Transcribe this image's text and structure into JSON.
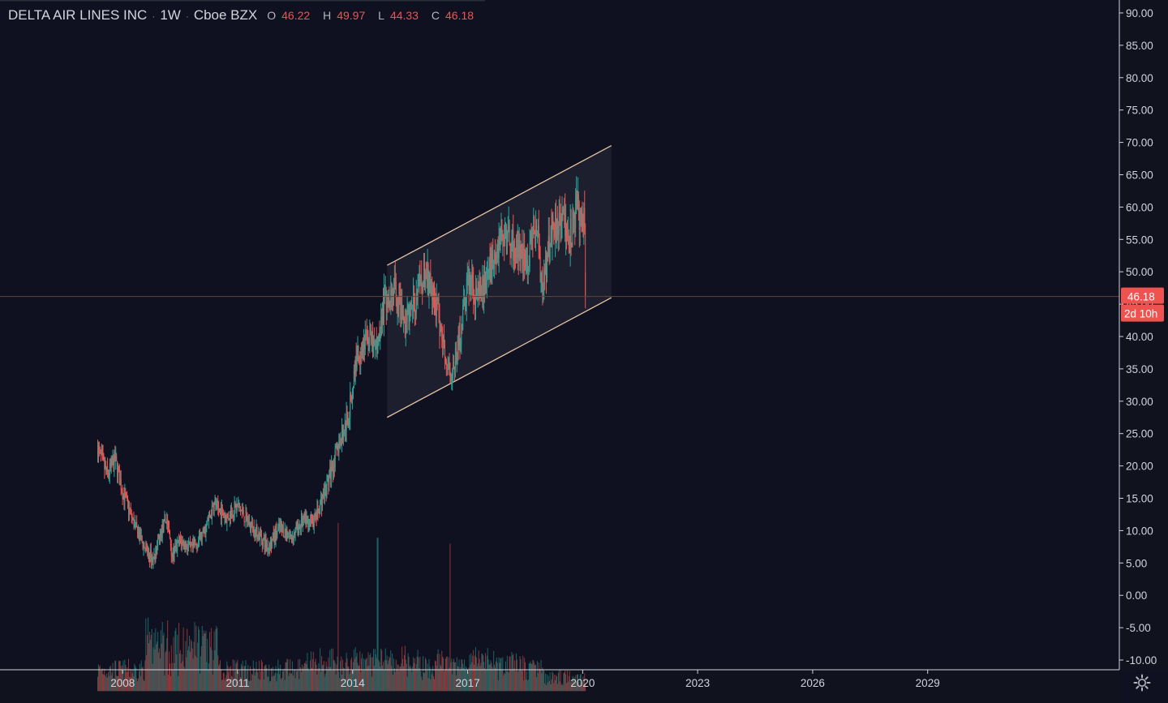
{
  "header": {
    "symbol": "DELTA AIR LINES INC",
    "interval": "1W",
    "exchange": "Cboe BZX",
    "ohlc": [
      {
        "key": "O",
        "value": "46.22"
      },
      {
        "key": "H",
        "value": "49.97"
      },
      {
        "key": "L",
        "value": "44.33"
      },
      {
        "key": "C",
        "value": "46.18"
      }
    ]
  },
  "icons": {
    "settings": "gear-icon"
  },
  "colors": {
    "background": "#0f1120",
    "up": "#26a69a",
    "down": "#ef5350",
    "axis_text": "#d1d4dc",
    "channel_line": "#e6c6a5",
    "price_label": "#ef5350",
    "last_price_line": "#8c2f3a"
  },
  "chart_data": {
    "type": "candlestick",
    "interval": "1W",
    "ylim": [
      -11.5,
      92
    ],
    "xlim": [
      2004.8,
      2034.0
    ],
    "y_ticks": [
      "90.00",
      "85.00",
      "80.00",
      "75.00",
      "70.00",
      "65.00",
      "60.00",
      "55.00",
      "50.00",
      "45.00",
      "40.00",
      "35.00",
      "30.00",
      "25.00",
      "20.00",
      "15.00",
      "10.00",
      "5.00",
      "0.00",
      "-5.00",
      "-10.00"
    ],
    "x_ticks": [
      "2008",
      "2011",
      "2014",
      "2017",
      "2020",
      "2023",
      "2026",
      "2029"
    ],
    "last_price": "46.18",
    "countdown": "2d 10h",
    "channel": {
      "upper": [
        [
          2014.9,
          51.0
        ],
        [
          2020.75,
          69.5
        ]
      ],
      "lower": [
        [
          2014.9,
          27.5
        ],
        [
          2020.75,
          46.0
        ]
      ]
    },
    "price_path": [
      [
        2007.35,
        22.5
      ],
      [
        2007.6,
        18.5
      ],
      [
        2007.8,
        21.0
      ],
      [
        2008.0,
        16.0
      ],
      [
        2008.3,
        11.0
      ],
      [
        2008.6,
        7.0
      ],
      [
        2008.8,
        5.5
      ],
      [
        2009.0,
        9.5
      ],
      [
        2009.15,
        12.0
      ],
      [
        2009.3,
        6.0
      ],
      [
        2009.5,
        8.5
      ],
      [
        2009.8,
        7.0
      ],
      [
        2010.1,
        9.5
      ],
      [
        2010.4,
        14.0
      ],
      [
        2010.7,
        12.0
      ],
      [
        2011.0,
        14.0
      ],
      [
        2011.3,
        11.0
      ],
      [
        2011.6,
        9.0
      ],
      [
        2011.8,
        7.5
      ],
      [
        2012.1,
        10.5
      ],
      [
        2012.4,
        9.0
      ],
      [
        2012.7,
        11.5
      ],
      [
        2013.0,
        11.5
      ],
      [
        2013.3,
        16.5
      ],
      [
        2013.6,
        22.5
      ],
      [
        2013.9,
        28.0
      ],
      [
        2014.1,
        37.0
      ],
      [
        2014.4,
        40.0
      ],
      [
        2014.6,
        38.0
      ],
      [
        2014.85,
        46.0
      ],
      [
        2015.1,
        47.0
      ],
      [
        2015.35,
        42.0
      ],
      [
        2015.6,
        45.0
      ],
      [
        2015.9,
        50.0
      ],
      [
        2016.2,
        44.0
      ],
      [
        2016.4,
        38.0
      ],
      [
        2016.6,
        34.0
      ],
      [
        2016.8,
        40.0
      ],
      [
        2017.0,
        49.0
      ],
      [
        2017.3,
        46.0
      ],
      [
        2017.6,
        51.0
      ],
      [
        2017.9,
        56.0
      ],
      [
        2018.2,
        54.0
      ],
      [
        2018.5,
        51.0
      ],
      [
        2018.8,
        58.0
      ],
      [
        2018.95,
        47.0
      ],
      [
        2019.2,
        57.0
      ],
      [
        2019.45,
        59.0
      ],
      [
        2019.65,
        55.0
      ],
      [
        2019.85,
        60.0
      ],
      [
        2020.05,
        57.0
      ],
      [
        2020.09,
        46.18
      ]
    ],
    "volume": {
      "series_count": 650,
      "ylim": [
        -14.8,
        11.5
      ],
      "spikes": [
        [
          2013.62,
          11.2
        ],
        [
          2014.65,
          8.9
        ],
        [
          2016.55,
          8.0
        ]
      ],
      "tall_years": [
        2008.6,
        2010.5
      ]
    }
  }
}
